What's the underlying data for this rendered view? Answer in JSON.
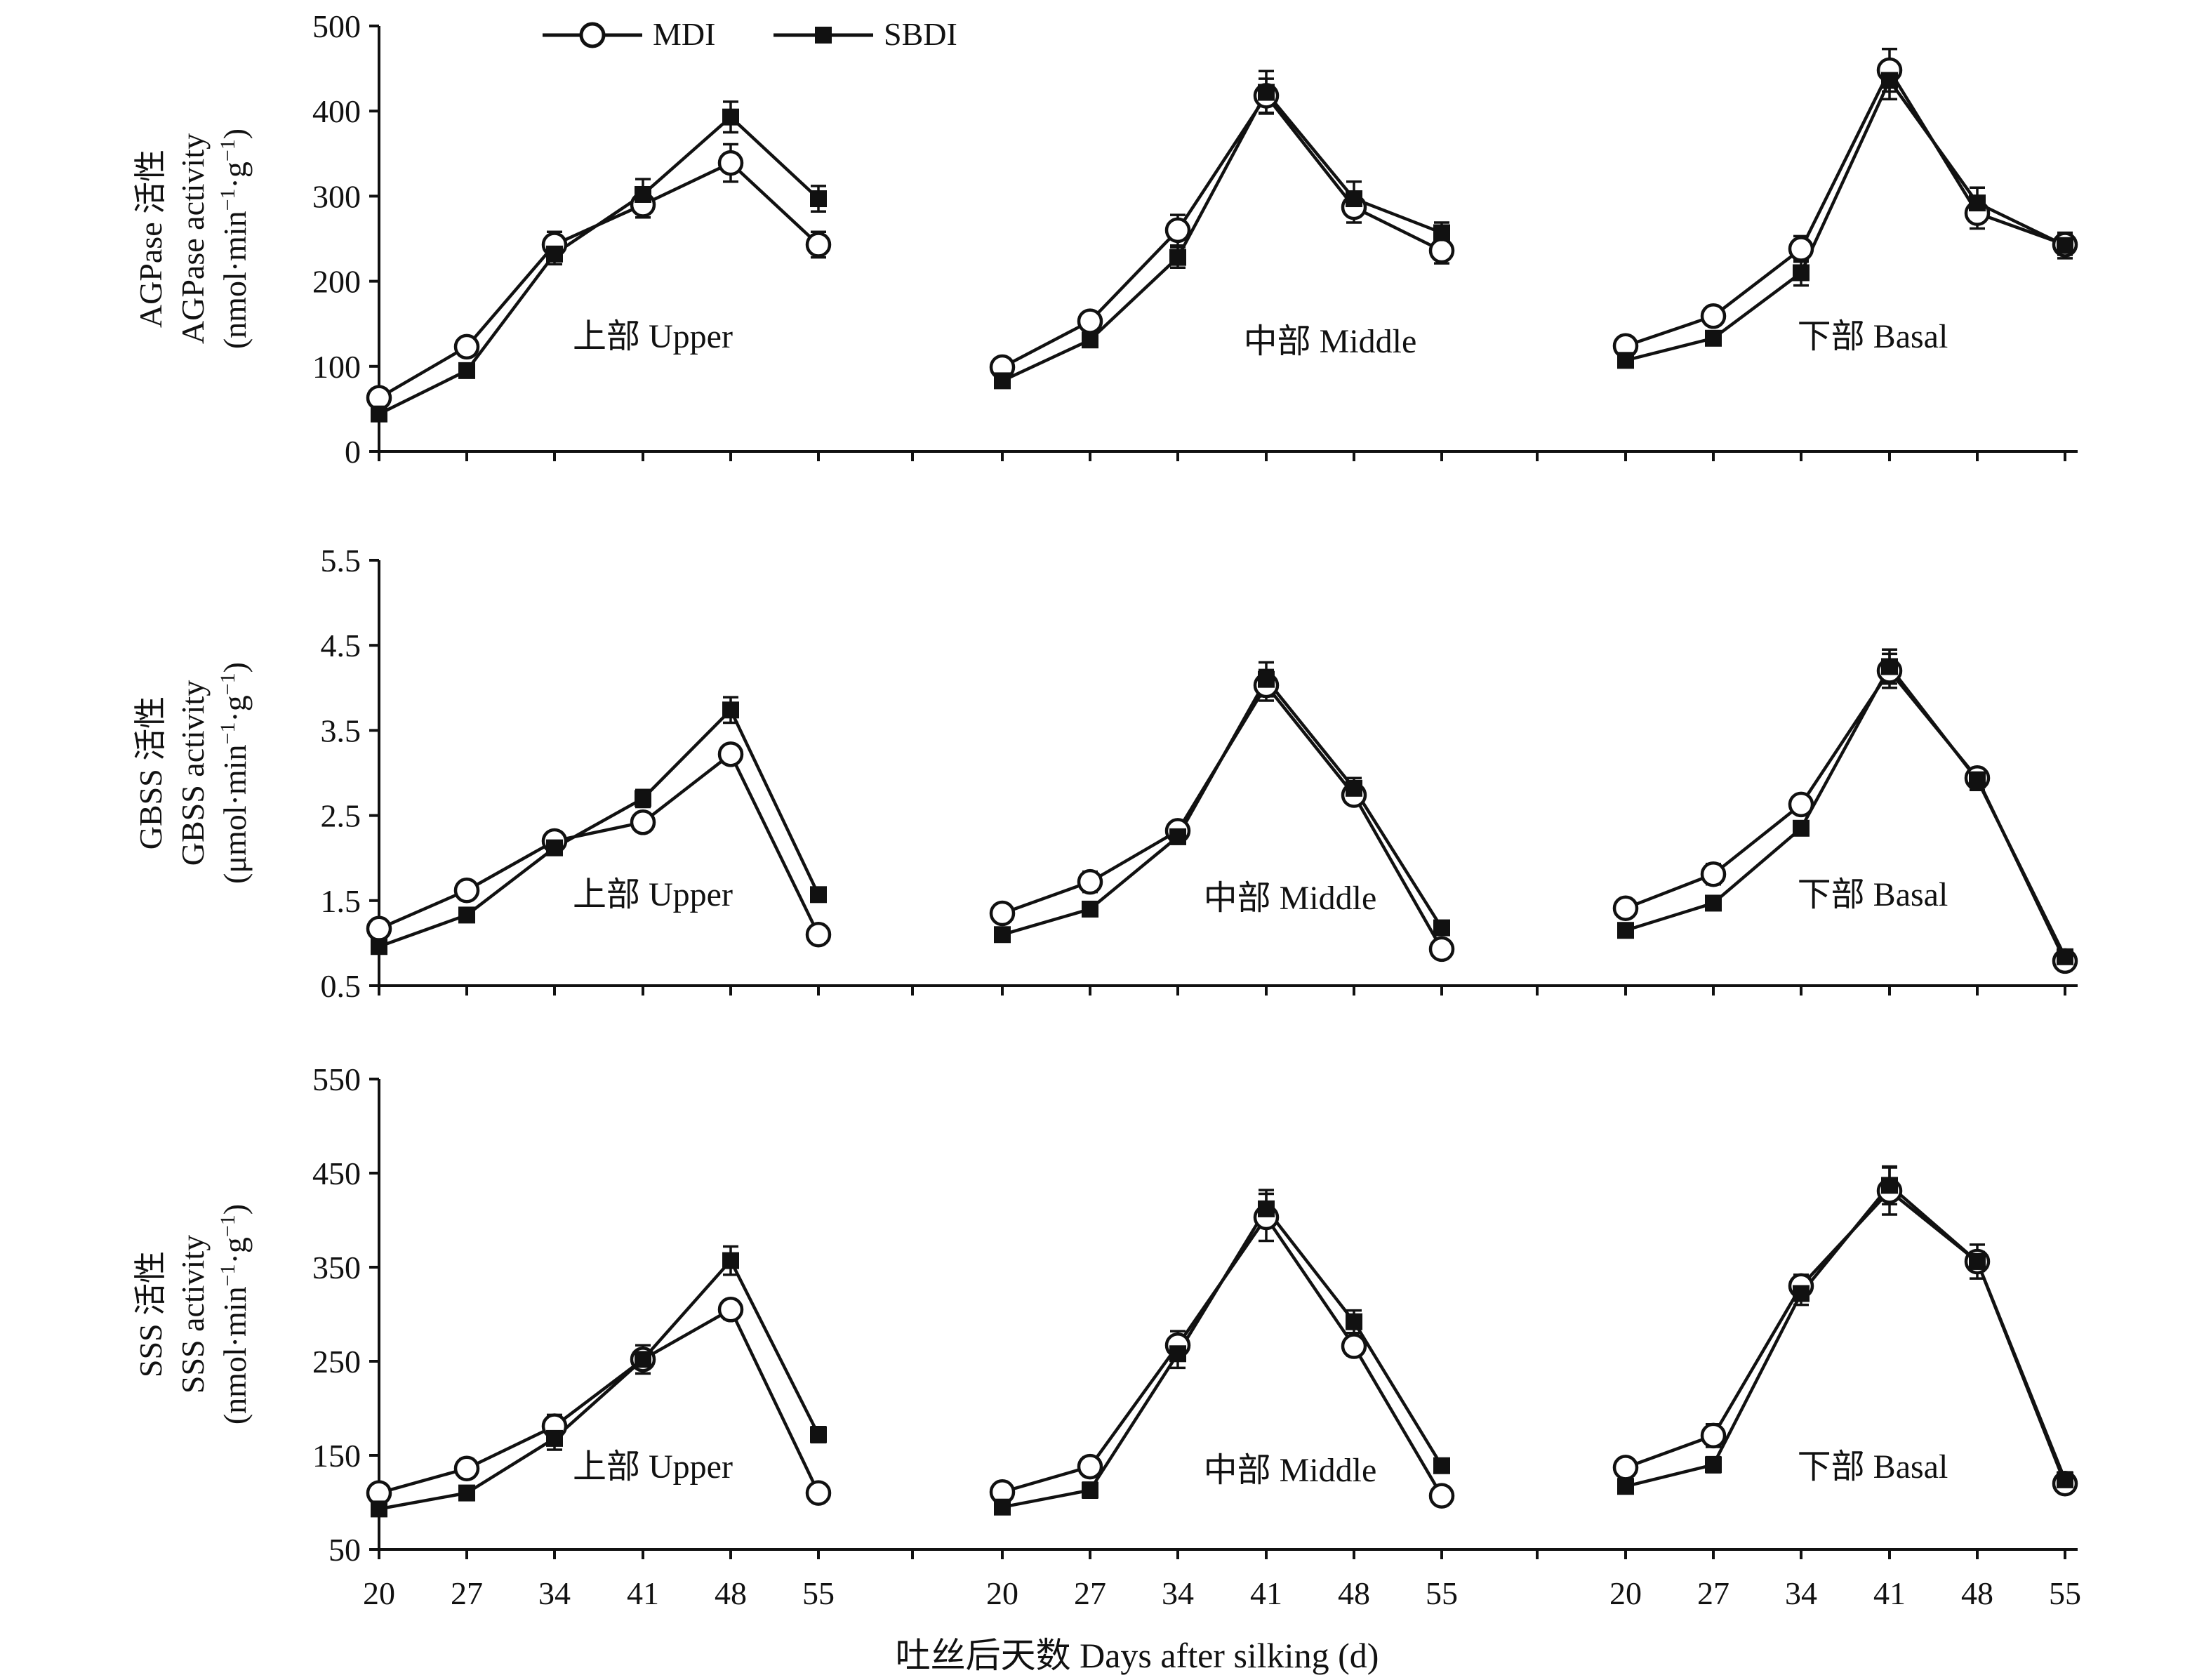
{
  "legend": {
    "items": [
      {
        "label": "MDI",
        "marker": "open-circle"
      },
      {
        "label": "SBDI",
        "marker": "filled-square"
      }
    ]
  },
  "x_title": "吐丝后天数 Days after silking (d)",
  "chart_data": [
    {
      "type": "line",
      "id": "agpase",
      "ylabel_lines": [
        "AGPase 活性",
        "AGPase activity"
      ],
      "yunit": {
        "pre": "(nmol·min",
        "sup1": "−1",
        "mid": "·g",
        "sup2": "−1",
        "post": ")"
      },
      "ylim": [
        0,
        500
      ],
      "yticks": [
        "0",
        "100",
        "200",
        "300",
        "400",
        "500"
      ],
      "x": [
        20,
        27,
        34,
        41,
        48,
        55
      ],
      "groups": [
        {
          "label": "上部 Upper",
          "series": [
            {
              "name": "MDI",
              "values": [
                63,
                123,
                243,
                290,
                339,
                243
              ],
              "errors": [
                8,
                8,
                15,
                15,
                22,
                15
              ]
            },
            {
              "name": "SBDI",
              "values": [
                44,
                95,
                232,
                302,
                393,
                297
              ],
              "errors": [
                5,
                5,
                12,
                18,
                18,
                15
              ]
            }
          ]
        },
        {
          "label": "中部 Middle",
          "series": [
            {
              "name": "MDI",
              "values": [
                99,
                153,
                260,
                418,
                287,
                236
              ],
              "errors": [
                8,
                10,
                18,
                20,
                18,
                15
              ]
            },
            {
              "name": "SBDI",
              "values": [
                83,
                131,
                228,
                422,
                297,
                257
              ],
              "errors": [
                5,
                5,
                12,
                25,
                20,
                12
              ]
            }
          ]
        },
        {
          "label": "下部 Basal",
          "series": [
            {
              "name": "MDI",
              "values": [
                124,
                159,
                238,
                448,
                280,
                243
              ],
              "errors": [
                10,
                10,
                15,
                25,
                18,
                12
              ]
            },
            {
              "name": "SBDI",
              "values": [
                107,
                133,
                210,
                436,
                292,
                242
              ],
              "errors": [
                5,
                5,
                15,
                22,
                18,
                15
              ]
            }
          ]
        }
      ]
    },
    {
      "type": "line",
      "id": "gbss",
      "ylabel_lines": [
        "GBSS 活性",
        "GBSS activity"
      ],
      "yunit": {
        "pre": "(μmol·min",
        "sup1": "−1",
        "mid": "·g",
        "sup2": "−1",
        "post": ")"
      },
      "ylim": [
        0.5,
        5.5
      ],
      "yticks": [
        "0.5",
        "1.5",
        "2.5",
        "3.5",
        "4.5",
        "5.5"
      ],
      "x": [
        20,
        27,
        34,
        41,
        48,
        55
      ],
      "groups": [
        {
          "label": "上部 Upper",
          "series": [
            {
              "name": "MDI",
              "values": [
                1.17,
                1.62,
                2.2,
                2.42,
                3.22,
                1.1
              ],
              "errors": [
                0.08,
                0.1,
                0.08,
                0.08,
                0.1,
                0.06
              ]
            },
            {
              "name": "SBDI",
              "values": [
                0.96,
                1.33,
                2.12,
                2.7,
                3.74,
                1.57
              ],
              "errors": [
                0.05,
                0.08,
                0.08,
                0.1,
                0.15,
                0.08
              ]
            }
          ]
        },
        {
          "label": "中部 Middle",
          "series": [
            {
              "name": "MDI",
              "values": [
                1.35,
                1.72,
                2.32,
                4.03,
                2.74,
                0.93
              ],
              "errors": [
                0.1,
                0.12,
                0.1,
                0.18,
                0.1,
                0.08
              ]
            },
            {
              "name": "SBDI",
              "values": [
                1.1,
                1.4,
                2.25,
                4.1,
                2.82,
                1.18
              ],
              "errors": [
                0.06,
                0.08,
                0.08,
                0.2,
                0.12,
                0.08
              ]
            }
          ]
        },
        {
          "label": "下部 Basal",
          "series": [
            {
              "name": "MDI",
              "values": [
                1.41,
                1.81,
                2.63,
                4.2,
                2.94,
                0.79
              ],
              "errors": [
                0.1,
                0.12,
                0.1,
                0.2,
                0.08,
                0.08
              ]
            },
            {
              "name": "SBDI",
              "values": [
                1.15,
                1.47,
                2.35,
                4.25,
                2.92,
                0.84
              ],
              "errors": [
                0.06,
                0.08,
                0.08,
                0.2,
                0.12,
                0.06
              ]
            }
          ]
        }
      ]
    },
    {
      "type": "line",
      "id": "sss",
      "ylabel_lines": [
        "SSS 活性",
        "SSS activity"
      ],
      "yunit": {
        "pre": "(nmol·min",
        "sup1": "−1",
        "mid": "·g",
        "sup2": "−1",
        "post": ")"
      },
      "ylim": [
        50,
        550
      ],
      "yticks": [
        "50",
        "150",
        "250",
        "350",
        "450",
        "550"
      ],
      "x": [
        20,
        27,
        34,
        41,
        48,
        55
      ],
      "groups": [
        {
          "label": "上部 Upper",
          "series": [
            {
              "name": "MDI",
              "values": [
                110,
                136,
                181,
                252,
                305,
                110
              ],
              "errors": [
                8,
                10,
                12,
                15,
                10,
                8
              ]
            },
            {
              "name": "SBDI",
              "values": [
                93,
                110,
                168,
                252,
                357,
                172
              ],
              "errors": [
                5,
                6,
                12,
                15,
                15,
                8
              ]
            }
          ]
        },
        {
          "label": "中部 Middle",
          "series": [
            {
              "name": "MDI",
              "values": [
                111,
                138,
                267,
                403,
                266,
                107
              ],
              "errors": [
                8,
                10,
                15,
                25,
                10,
                8
              ]
            },
            {
              "name": "SBDI",
              "values": [
                95,
                113,
                258,
                412,
                292,
                139
              ],
              "errors": [
                6,
                8,
                15,
                20,
                12,
                6
              ]
            }
          ]
        },
        {
          "label": "下部 Basal",
          "series": [
            {
              "name": "MDI",
              "values": [
                137,
                171,
                330,
                431,
                356,
                120
              ],
              "errors": [
                10,
                12,
                12,
                25,
                10,
                8
              ]
            },
            {
              "name": "SBDI",
              "values": [
                117,
                140,
                322,
                437,
                356,
                124
              ],
              "errors": [
                6,
                8,
                12,
                20,
                18,
                8
              ]
            }
          ]
        }
      ]
    }
  ]
}
